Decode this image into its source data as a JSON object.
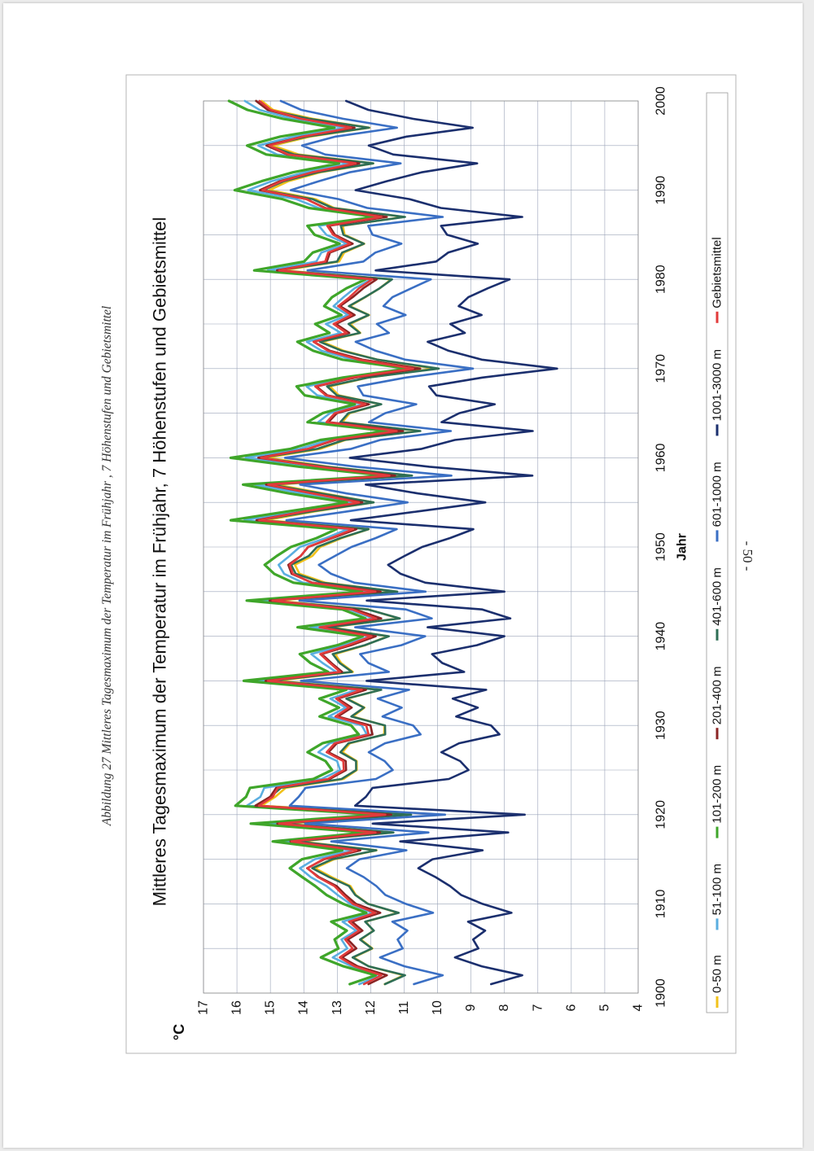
{
  "caption": "Abbildung 27 Mittleres Tagesmaximum der Temperatur im Frühjahr , 7 Höhenstufen und Gebietsmittel",
  "page_number": "- 50 -",
  "colors": {
    "0-50 m": "#f2c21b",
    "51-100 m": "#5aaee0",
    "101-200 m": "#3fa62a",
    "201-400 m": "#8b2424",
    "401-600 m": "#2e6e55",
    "601-1000 m": "#3a6fc4",
    "1001-3000 m": "#1b2f6e",
    "Gebietsmittel": "#e23b3b"
  },
  "chart_data": {
    "type": "line",
    "title": "Mittleres Tagesmaximum der Temperatur im Frühjahr, 7 Höhenstufen und Gebietsmittel",
    "xlabel": "Jahr",
    "ylabel": "°C",
    "xlim": [
      1900,
      2000
    ],
    "ylim": [
      4,
      17
    ],
    "xticks": [
      "1900",
      "1910",
      "1920",
      "1930",
      "1940",
      "1950",
      "1960",
      "1970",
      "1980",
      "1990",
      "2000"
    ],
    "yticks": [
      "4",
      "5",
      "6",
      "7",
      "8",
      "9",
      "10",
      "11",
      "12",
      "13",
      "14",
      "15",
      "16",
      "17"
    ],
    "grid": true,
    "legend_position": "bottom",
    "legend": [
      "0-50 m",
      "51-100 m",
      "101-200 m",
      "201-400 m",
      "401-600 m",
      "601-1000 m",
      "1001-3000 m",
      "Gebietsmittel"
    ],
    "x_start": 1901,
    "base_series": [
      12.2,
      11.6,
      12.5,
      13.0,
      12.5,
      12.7,
      12.4,
      12.7,
      11.8,
      12.5,
      12.9,
      13.1,
      13.5,
      13.9,
      13.5,
      12.4,
      14.3,
      11.9,
      14.8,
      11.5,
      15.3,
      15.0,
      14.8,
      13.2,
      12.8,
      12.9,
      13.3,
      13.0,
      12.1,
      12.2,
      13.0,
      12.6,
      13.1,
      12.3,
      15.0,
      12.9,
      13.3,
      13.5,
      12.6,
      12.0,
      13.6,
      11.8,
      12.5,
      15.0,
      11.9,
      13.7,
      14.3,
      14.5,
      14.1,
      13.8,
      13.2,
      12.6,
      15.3,
      13.9,
      12.4,
      13.8,
      15.0,
      11.4,
      13.6,
      15.3,
      13.8,
      13.1,
      11.3,
      13.3,
      13.0,
      12.2,
      13.4,
      13.6,
      12.5,
      10.8,
      12.4,
      13.2,
      13.7,
      12.8,
      13.1,
      12.5,
      13.0,
      12.7,
      12.3,
      11.9,
      14.8,
      13.4,
      13.2,
      12.6,
      13.2,
      13.3,
      11.6,
      13.4,
      14.0,
      15.2,
      14.6,
      13.8,
      12.5,
      14.4,
      15.0,
      14.1,
      12.6,
      14.0,
      15.0,
      15.4
    ],
    "series": [
      {
        "name": "0-50 m",
        "offset": -0.4,
        "variation": 0.14
      },
      {
        "name": "51-100 m",
        "offset": 0.2,
        "variation": 0.1
      },
      {
        "name": "101-200 m",
        "offset": 0.5,
        "variation": 0.15
      },
      {
        "name": "201-400 m",
        "offset": -0.05,
        "variation": 0.07
      },
      {
        "name": "401-600 m",
        "offset": -0.35,
        "variation": 0.2
      },
      {
        "name": "601-1000 m",
        "offset": -1.3,
        "variation": 0.24
      },
      {
        "name": "1001-3000 m",
        "offset": -3.5,
        "variation": 0.36
      },
      {
        "name": "Gebietsmittel",
        "offset": 0.0,
        "variation": 0.0
      }
    ]
  }
}
